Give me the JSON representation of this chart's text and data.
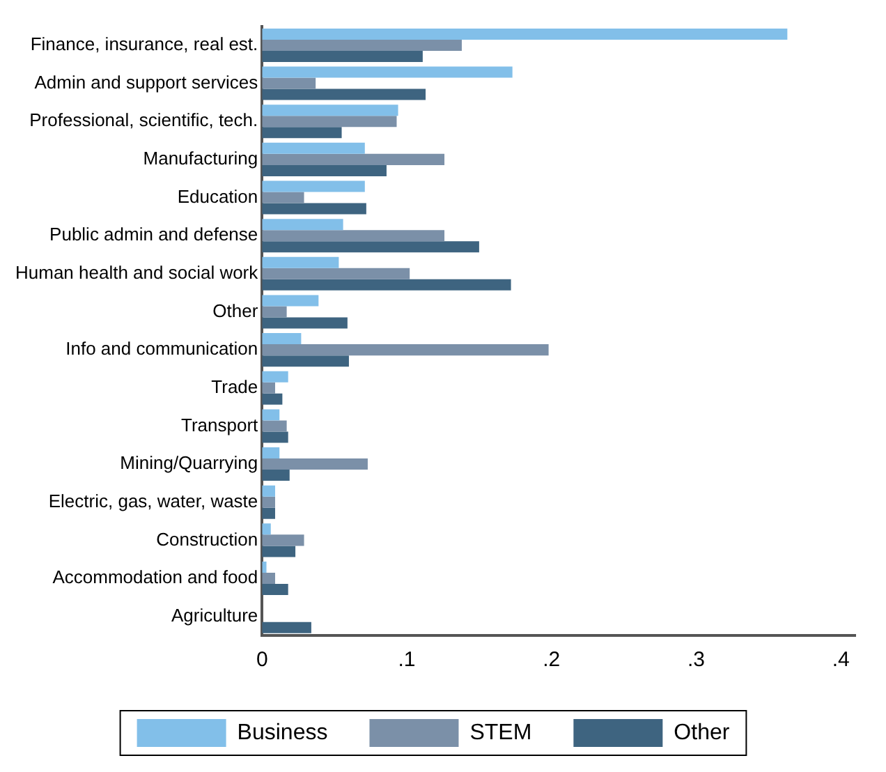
{
  "chart_data": {
    "type": "bar",
    "orientation": "horizontal",
    "categories": [
      "Finance, insurance, real est.",
      "Admin and support services",
      "Professional, scientific, tech.",
      "Manufacturing",
      "Education",
      "Public admin and defense",
      "Human health and social work",
      "Other",
      "Info and communication",
      "Trade",
      "Transport",
      "Mining/Quarrying",
      "Electric, gas, water, waste",
      "Construction",
      "Accommodation and food",
      "Agriculture"
    ],
    "series": [
      {
        "name": "Business",
        "color": "#82bfe9",
        "values": [
          0.363,
          0.173,
          0.094,
          0.071,
          0.071,
          0.056,
          0.053,
          0.039,
          0.027,
          0.018,
          0.012,
          0.012,
          0.009,
          0.006,
          0.003,
          0
        ]
      },
      {
        "name": "STEM",
        "color": "#7b90a8",
        "values": [
          0.138,
          0.037,
          0.093,
          0.126,
          0.029,
          0.126,
          0.102,
          0.017,
          0.198,
          0.009,
          0.017,
          0.073,
          0.009,
          0.029,
          0.009,
          0
        ]
      },
      {
        "name": "Other",
        "color": "#3e6480",
        "values": [
          0.111,
          0.113,
          0.055,
          0.086,
          0.072,
          0.15,
          0.172,
          0.059,
          0.06,
          0.014,
          0.018,
          0.019,
          0.009,
          0.023,
          0.018,
          0.034
        ]
      }
    ],
    "xlim": [
      0,
      0.41
    ],
    "xticks": [
      0,
      {
        "value": 0.1,
        "label": ".1"
      },
      {
        "value": 0.2,
        "label": ".2"
      },
      {
        "value": 0.3,
        "label": ".3"
      },
      {
        "value": 0.4,
        "label": ".4"
      }
    ],
    "grid": false,
    "legend": "bottom"
  }
}
